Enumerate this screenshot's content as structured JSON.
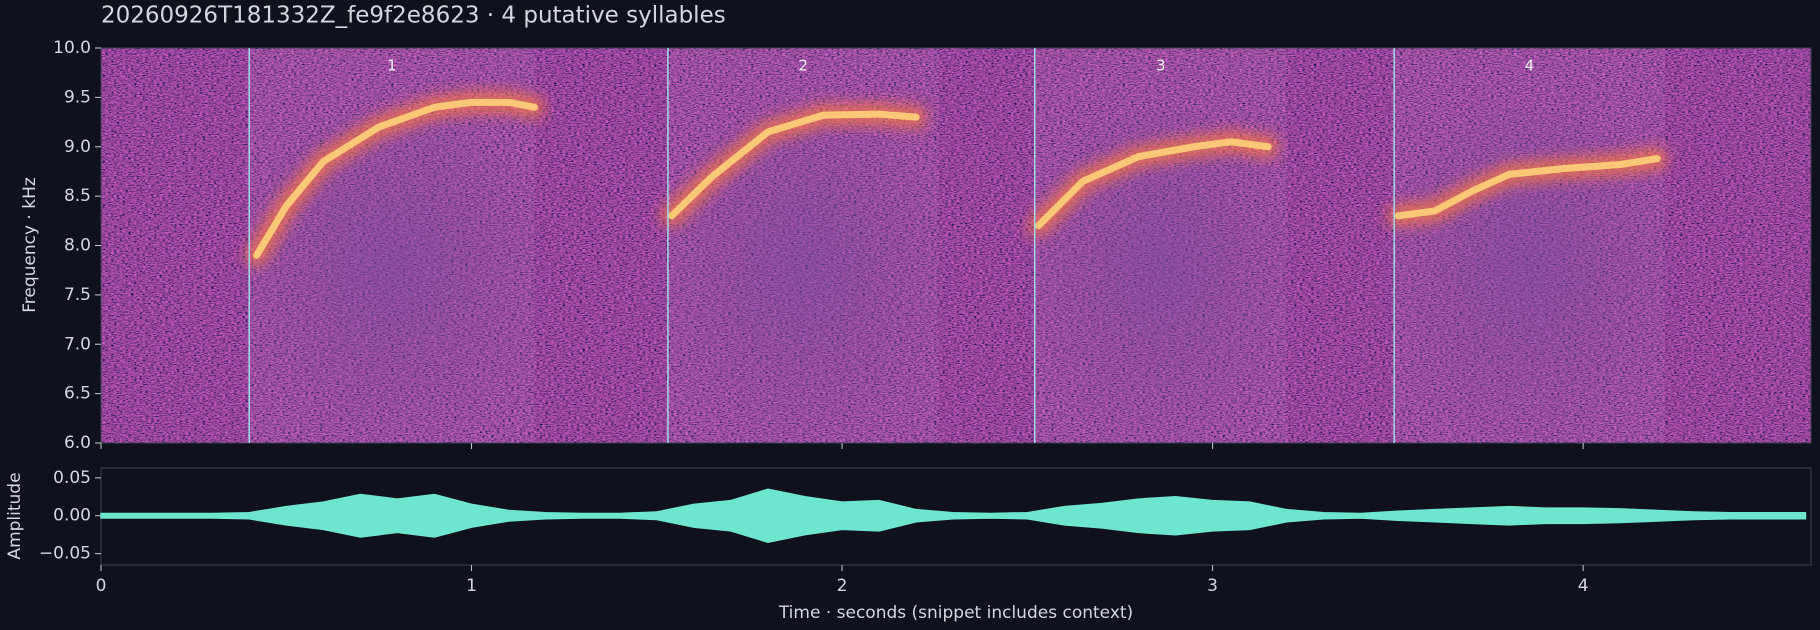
{
  "chart_data": [
    {
      "type": "spectrogram",
      "title": "20260926T181332Z_fe9f2e8623  ·  4 putative syllables",
      "ylabel": "Frequency · kHz",
      "xlim": [
        0,
        4.615
      ],
      "ylim": [
        6,
        10
      ],
      "xticks": [
        0,
        1,
        2,
        3,
        4
      ],
      "yticks": [
        {
          "value": 6,
          "label": "6.0"
        },
        {
          "value": 6.5,
          "label": "6.5"
        },
        {
          "value": 7,
          "label": "7.0"
        },
        {
          "value": 7.5,
          "label": "7.5"
        },
        {
          "value": 8,
          "label": "8.0"
        },
        {
          "value": 8.5,
          "label": "8.5"
        },
        {
          "value": 9,
          "label": "9.0"
        },
        {
          "value": 9.5,
          "label": "9.5"
        },
        {
          "value": 10,
          "label": "10.0"
        }
      ],
      "syllables": [
        {
          "label": "1",
          "start": 0.4,
          "end": 1.17,
          "contour": {
            "x": [
              0.42,
              0.5,
              0.6,
              0.75,
              0.9,
              1.0,
              1.1,
              1.17
            ],
            "y": [
              7.9,
              8.4,
              8.85,
              9.2,
              9.4,
              9.45,
              9.45,
              9.4
            ]
          }
        },
        {
          "label": "2",
          "start": 1.53,
          "end": 2.26,
          "contour": {
            "x": [
              1.54,
              1.65,
              1.8,
              1.95,
              2.1,
              2.2
            ],
            "y": [
              8.3,
              8.7,
              9.15,
              9.32,
              9.33,
              9.3
            ]
          }
        },
        {
          "label": "3",
          "start": 2.52,
          "end": 3.2,
          "contour": {
            "x": [
              2.53,
              2.65,
              2.8,
              2.95,
              3.05,
              3.15
            ],
            "y": [
              8.2,
              8.65,
              8.9,
              9.0,
              9.05,
              9.0
            ]
          }
        },
        {
          "label": "4",
          "start": 3.49,
          "end": 4.22,
          "contour": {
            "x": [
              3.5,
              3.6,
              3.7,
              3.8,
              3.95,
              4.1,
              4.2
            ],
            "y": [
              8.3,
              8.35,
              8.55,
              8.72,
              8.78,
              8.82,
              8.88
            ]
          }
        }
      ],
      "color": "#ffd27a"
    },
    {
      "type": "area",
      "ylabel": "Amplitude",
      "xlabel": "Time · seconds (snippet includes context)",
      "xlim": [
        0,
        4.615
      ],
      "ylim": [
        -0.065,
        0.063
      ],
      "xticks": [
        0,
        1,
        2,
        3,
        4
      ],
      "yticks": [
        0.05,
        {
          "value": 0,
          "label": "0.00"
        },
        {
          "value": -0.05,
          "label": "−0.05"
        }
      ],
      "color": "#6ee6cf",
      "x": [
        0,
        0.1,
        0.2,
        0.3,
        0.4,
        0.5,
        0.6,
        0.7,
        0.8,
        0.9,
        1.0,
        1.1,
        1.2,
        1.3,
        1.4,
        1.5,
        1.6,
        1.7,
        1.8,
        1.9,
        2.0,
        2.1,
        2.2,
        2.3,
        2.4,
        2.5,
        2.6,
        2.7,
        2.8,
        2.9,
        3.0,
        3.1,
        3.2,
        3.3,
        3.4,
        3.5,
        3.6,
        3.7,
        3.8,
        3.9,
        4.0,
        4.1,
        4.2,
        4.3,
        4.4,
        4.5,
        4.6
      ],
      "values": [
        0.003,
        0.003,
        0.003,
        0.003,
        0.004,
        0.012,
        0.018,
        0.028,
        0.022,
        0.028,
        0.015,
        0.007,
        0.004,
        0.003,
        0.003,
        0.005,
        0.015,
        0.02,
        0.035,
        0.025,
        0.018,
        0.02,
        0.008,
        0.004,
        0.003,
        0.004,
        0.012,
        0.016,
        0.022,
        0.025,
        0.02,
        0.018,
        0.008,
        0.004,
        0.003,
        0.006,
        0.008,
        0.01,
        0.012,
        0.01,
        0.01,
        0.009,
        0.007,
        0.005,
        0.004,
        0.004,
        0.004
      ]
    }
  ]
}
